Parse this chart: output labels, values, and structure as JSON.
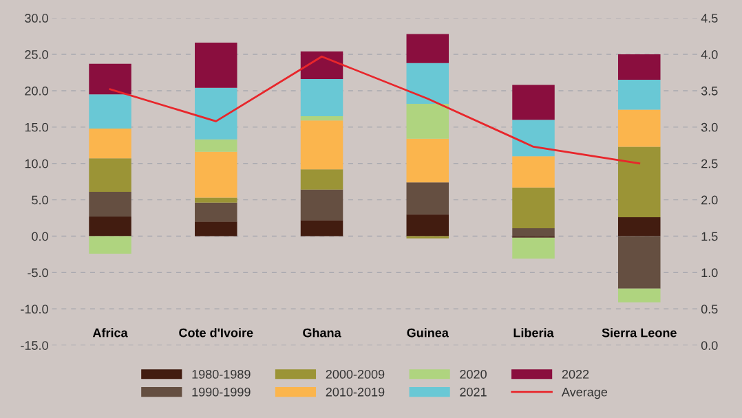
{
  "chart_data": {
    "type": "bar",
    "stacked": true,
    "categories": [
      "Africa",
      "Cote d'Ivoire",
      "Ghana",
      "Guinea",
      "Liberia",
      "Sierra Leone"
    ],
    "series": [
      {
        "name": "1980-1989",
        "color": "#421c10",
        "values": [
          2.7,
          2.0,
          2.2,
          3.0,
          -0.2,
          2.6
        ]
      },
      {
        "name": "1990-1999",
        "color": "#654f41",
        "values": [
          3.4,
          2.6,
          4.2,
          4.4,
          1.1,
          -7.2
        ]
      },
      {
        "name": "2000-2009",
        "color": "#9b9436",
        "values": [
          4.6,
          0.7,
          2.8,
          -0.3,
          5.6,
          9.7
        ]
      },
      {
        "name": "2010-2019",
        "color": "#fbb54d",
        "values": [
          4.1,
          6.3,
          6.7,
          6.0,
          4.3,
          5.1
        ]
      },
      {
        "name": "2020",
        "color": "#afd47f",
        "values": [
          -2.4,
          1.7,
          0.6,
          4.8,
          -2.9,
          -1.9
        ]
      },
      {
        "name": "2021",
        "color": "#69c8d5",
        "values": [
          4.7,
          7.1,
          5.1,
          5.6,
          5.0,
          4.1
        ]
      },
      {
        "name": "2022",
        "color": "#8a0e3e",
        "values": [
          4.2,
          6.2,
          3.8,
          4.0,
          4.8,
          3.5
        ]
      },
      {
        "name": "Average",
        "type": "line",
        "axis": "y2",
        "color": "#e8262b",
        "values": [
          3.52,
          3.08,
          3.97,
          3.39,
          2.73,
          2.5
        ]
      }
    ],
    "ylim": [
      -15,
      30
    ],
    "yticks": [
      {
        "value": -15,
        "label": "-15.0"
      },
      {
        "value": -10,
        "label": "-10.0"
      },
      {
        "value": -5,
        "label": "-5.0"
      },
      {
        "value": 0,
        "label": "0.0"
      },
      {
        "value": 5,
        "label": "5.0"
      },
      {
        "value": 10,
        "label": "10.0"
      },
      {
        "value": 15,
        "label": "15.0"
      },
      {
        "value": 20,
        "label": "20.0"
      },
      {
        "value": 25,
        "label": "25.0"
      },
      {
        "value": 30,
        "label": "30.0"
      }
    ],
    "y2lim": [
      0,
      4.5
    ],
    "y2ticks": [
      {
        "value": 0,
        "label": "0.0"
      },
      {
        "value": 0.5,
        "label": "0.5"
      },
      {
        "value": 1,
        "label": "1.0"
      },
      {
        "value": 1.5,
        "label": "1.5"
      },
      {
        "value": 2,
        "label": "2.0"
      },
      {
        "value": 2.5,
        "label": "2.5"
      },
      {
        "value": 3,
        "label": "3.0"
      },
      {
        "value": 3.5,
        "label": "3.5"
      },
      {
        "value": 4,
        "label": "4.0"
      },
      {
        "value": 4.5,
        "label": "4.5"
      }
    ],
    "grid": "y",
    "legend": "bottom",
    "line_style": "solid",
    "marker": "none"
  }
}
